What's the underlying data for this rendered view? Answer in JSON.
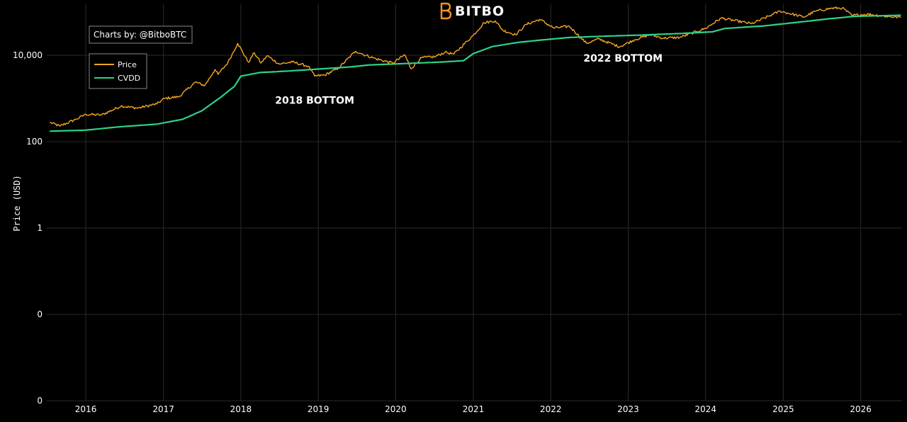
{
  "brand": {
    "name": "BITBO",
    "logo_icon": "bitbo-b-logo-icon",
    "logo_color": "#f7931a"
  },
  "credit": {
    "text": "Charts by: @BitboBTC"
  },
  "chart_data": {
    "type": "line",
    "title": "",
    "xlabel": "",
    "ylabel": "Price (USD)",
    "y_scale": "log",
    "background": "#000000",
    "grid": true,
    "legend_position": "top-left",
    "x_range": [
      "2015-07-01",
      "2026-07-15"
    ],
    "y_range_log10": [
      -4,
      5.2
    ],
    "x_ticks": [
      "2016",
      "2017",
      "2018",
      "2019",
      "2020",
      "2021",
      "2022",
      "2023",
      "2024",
      "2025",
      "2026"
    ],
    "y_ticks": [
      {
        "label": "10,000",
        "log10": 4
      },
      {
        "label": "100",
        "log10": 2
      },
      {
        "label": "1",
        "log10": 0
      },
      {
        "label": "0",
        "log10": -2
      },
      {
        "label": "0",
        "log10": -4
      }
    ],
    "series": [
      {
        "name": "Price",
        "color": "#f5a623",
        "points": [
          [
            "2015-07-15",
            280
          ],
          [
            "2015-09-01",
            230
          ],
          [
            "2015-11-15",
            330
          ],
          [
            "2016-01-01",
            430
          ],
          [
            "2016-03-15",
            415
          ],
          [
            "2016-06-15",
            670
          ],
          [
            "2016-09-01",
            600
          ],
          [
            "2016-12-01",
            750
          ],
          [
            "2017-01-05",
            1000
          ],
          [
            "2017-03-15",
            1100
          ],
          [
            "2017-06-01",
            2400
          ],
          [
            "2017-07-15",
            2000
          ],
          [
            "2017-09-01",
            4700
          ],
          [
            "2017-09-15",
            3600
          ],
          [
            "2017-11-01",
            6800
          ],
          [
            "2017-12-17",
            19000
          ],
          [
            "2018-02-06",
            6900
          ],
          [
            "2018-03-05",
            11500
          ],
          [
            "2018-04-06",
            6600
          ],
          [
            "2018-05-05",
            9800
          ],
          [
            "2018-07-01",
            6300
          ],
          [
            "2018-09-01",
            7000
          ],
          [
            "2018-11-15",
            5600
          ],
          [
            "2018-12-15",
            3300
          ],
          [
            "2019-02-01",
            3500
          ],
          [
            "2019-04-05",
            5000
          ],
          [
            "2019-06-26",
            12500
          ],
          [
            "2019-08-01",
            10500
          ],
          [
            "2019-10-01",
            8300
          ],
          [
            "2019-12-18",
            6600
          ],
          [
            "2020-02-13",
            10300
          ],
          [
            "2020-03-13",
            4900
          ],
          [
            "2020-05-01",
            8800
          ],
          [
            "2020-07-01",
            9200
          ],
          [
            "2020-08-20",
            11800
          ],
          [
            "2020-10-01",
            10700
          ],
          [
            "2020-12-31",
            29000
          ],
          [
            "2021-02-21",
            57000
          ],
          [
            "2021-04-14",
            63000
          ],
          [
            "2021-05-20",
            38000
          ],
          [
            "2021-07-20",
            30000
          ],
          [
            "2021-09-07",
            52000
          ],
          [
            "2021-11-10",
            68000
          ],
          [
            "2022-01-15",
            43000
          ],
          [
            "2022-03-30",
            47000
          ],
          [
            "2022-06-18",
            19000
          ],
          [
            "2022-08-15",
            24000
          ],
          [
            "2022-11-21",
            15800
          ],
          [
            "2023-01-31",
            23000
          ],
          [
            "2023-04-14",
            30000
          ],
          [
            "2023-06-15",
            25000
          ],
          [
            "2023-09-01",
            26000
          ],
          [
            "2023-12-31",
            42000
          ],
          [
            "2024-03-14",
            73000
          ],
          [
            "2024-08-05",
            54000
          ],
          [
            "2024-11-15",
            90000
          ],
          [
            "2024-12-17",
            106000
          ],
          [
            "2025-04-08",
            77000
          ],
          [
            "2025-06-01",
            105000
          ],
          [
            "2025-08-14",
            123000
          ],
          [
            "2025-10-06",
            125000
          ],
          [
            "2025-11-21",
            84000
          ],
          [
            "2026-02-01",
            90000
          ],
          [
            "2026-05-01",
            80000
          ],
          [
            "2026-07-10",
            76000
          ]
        ]
      },
      {
        "name": "CVDD",
        "color": "#2ed188",
        "points": [
          [
            "2015-07-15",
            175
          ],
          [
            "2016-01-01",
            185
          ],
          [
            "2016-06-01",
            220
          ],
          [
            "2016-12-01",
            255
          ],
          [
            "2017-04-01",
            330
          ],
          [
            "2017-07-01",
            520
          ],
          [
            "2017-10-01",
            1100
          ],
          [
            "2017-12-01",
            1900
          ],
          [
            "2018-01-01",
            3300
          ],
          [
            "2018-04-01",
            4000
          ],
          [
            "2018-08-01",
            4300
          ],
          [
            "2018-12-01",
            4700
          ],
          [
            "2019-06-01",
            5400
          ],
          [
            "2019-09-01",
            6000
          ],
          [
            "2020-03-01",
            6500
          ],
          [
            "2020-08-01",
            7000
          ],
          [
            "2020-11-15",
            7500
          ],
          [
            "2021-01-01",
            11000
          ],
          [
            "2021-04-01",
            16000
          ],
          [
            "2021-08-01",
            20000
          ],
          [
            "2021-12-01",
            23000
          ],
          [
            "2022-04-01",
            26000
          ],
          [
            "2022-10-01",
            28000
          ],
          [
            "2023-03-01",
            29500
          ],
          [
            "2023-09-01",
            32000
          ],
          [
            "2024-02-01",
            35000
          ],
          [
            "2024-04-01",
            42000
          ],
          [
            "2024-10-01",
            48000
          ],
          [
            "2025-04-01",
            60000
          ],
          [
            "2025-08-01",
            70000
          ],
          [
            "2025-12-01",
            80000
          ],
          [
            "2026-07-10",
            85000
          ]
        ]
      }
    ],
    "annotations": [
      {
        "text": "2018 BOTTOM",
        "date": "2018-12-15",
        "value": 3300
      },
      {
        "text": "2022 BOTTOM",
        "date": "2022-11-21",
        "value": 15800
      }
    ]
  }
}
